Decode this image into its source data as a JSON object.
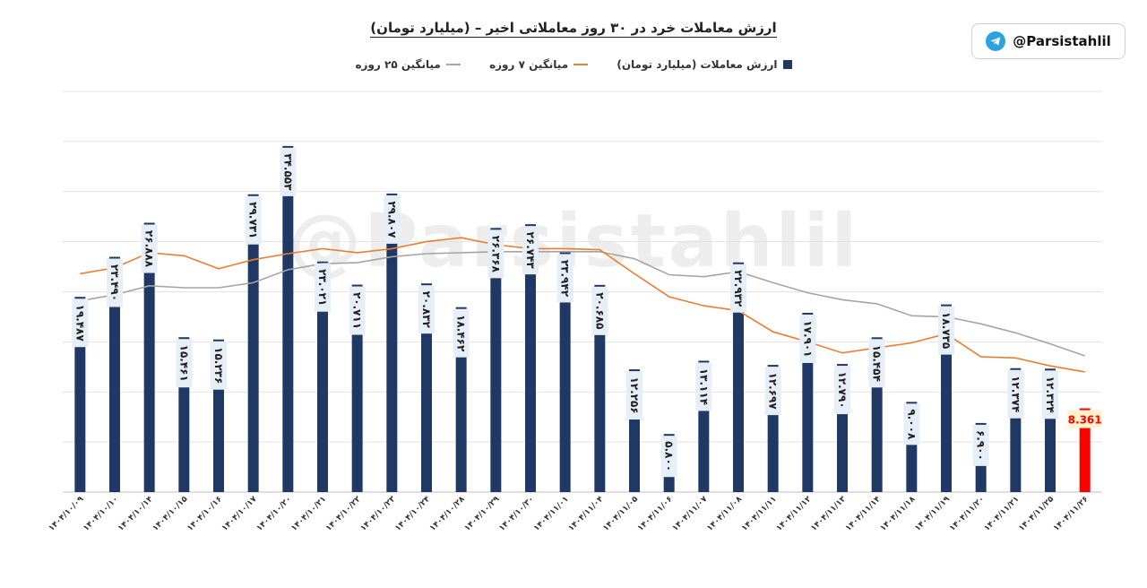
{
  "title": "ارزش معاملات خرد در ۳۰ روز معاملاتی اخیر – (میلیارد تومان)",
  "badge": {
    "handle": "@Parsistahlil",
    "icon": "telegram-icon"
  },
  "watermark": "@Parsistahlil",
  "legend": {
    "bars": "ارزش معاملات (میلیارد تومان)",
    "ma7": "میانگین ۷ روزه",
    "ma25": "میانگین ۲۵ روزه"
  },
  "colors": {
    "bar": "#203864",
    "last_bar": "#ff0000",
    "ma7": "#ed7d31",
    "ma25": "#a5a5a5",
    "label_bg": "#e6eef7",
    "last_label_bg": "#fff2cc",
    "last_label_text": "#ff0000"
  },
  "chart_data": {
    "type": "bar",
    "title": "ارزش معاملات خرد در ۳۰ روز معاملاتی اخیر – (میلیارد تومان)",
    "ylim": [
      0,
      40
    ],
    "grid": true,
    "legend_position": "top",
    "categories": [
      "۱۴۰۴/۱۰/۰۹",
      "۱۴۰۴/۱۰/۱۰",
      "۱۴۰۴/۱۰/۱۴",
      "۱۴۰۴/۱۰/۱۵",
      "۱۴۰۴/۱۰/۱۶",
      "۱۴۰۴/۱۰/۱۷",
      "۱۴۰۴/۱۰/۲۰",
      "۱۴۰۴/۱۰/۲۱",
      "۱۴۰۴/۱۰/۲۲",
      "۱۴۰۴/۱۰/۲۳",
      "۱۴۰۴/۱۰/۲۴",
      "۱۴۰۴/۱۰/۲۸",
      "۱۴۰۴/۱۰/۲۹",
      "۱۴۰۴/۱۰/۳۰",
      "۱۴۰۴/۱۱/۰۱",
      "۱۴۰۴/۱۱/۰۴",
      "۱۴۰۴/۱۱/۰۵",
      "۱۴۰۴/۱۱/۰۶",
      "۱۴۰۴/۱۱/۰۷",
      "۱۴۰۴/۱۱/۰۸",
      "۱۴۰۴/۱۱/۱۱",
      "۱۴۰۴/۱۱/۱۲",
      "۱۴۰۴/۱۱/۱۳",
      "۱۴۰۴/۱۱/۱۴",
      "۱۴۰۴/۱۱/۱۸",
      "۱۴۰۴/۱۱/۱۹",
      "۱۴۰۴/۱۱/۲۰",
      "۱۴۰۴/۱۱/۲۱",
      "۱۴۰۴/۱۱/۲۵",
      "۱۴۰۴/۱۱/۲۶"
    ],
    "series": [
      {
        "name": "ارزش معاملات (میلیارد تومان)",
        "type": "bar",
        "values": [
          19.487,
          23.49,
          26.888,
          15.461,
          15.236,
          29.731,
          34.553,
          23.021,
          20.711,
          29.807,
          20.832,
          18.462,
          26.368,
          26.743,
          23.942,
          20.685,
          12.256,
          5.8,
          13.114,
          22.932,
          12.697,
          17.901,
          12.79,
          15.454,
          9.008,
          18.735,
          6.9,
          12.374,
          12.324,
          8.361
        ],
        "labels": [
          "۱۹.۴۸۷",
          "۲۳.۴۹۰",
          "۲۶.۸۸۸",
          "۱۵.۴۶۱",
          "۱۵.۲۳۶",
          "۲۹.۷۳۱",
          "۳۴.۵۵۳",
          "۲۳.۰۲۱",
          "۲۰.۷۱۱",
          "۲۹.۸۰۷",
          "۲۰.۸۳۲",
          "۱۸.۴۶۲",
          "۲۶.۳۶۸",
          "۲۶.۷۴۳",
          "۲۳.۹۴۲",
          "۲۰.۶۸۵",
          "۱۲.۲۵۶",
          "۵.۸۰۰",
          "۱۳.۱۱۴",
          "۲۲.۹۳۲",
          "۱۲.۶۹۷",
          "۱۷.۹۰۱",
          "۱۲.۷۹۰",
          "۱۵.۴۵۴",
          "۹.۰۰۸",
          "۱۸.۷۳۵",
          "۶.۹۰۰",
          "۱۲.۳۷۴",
          "۱۲.۳۲۴",
          "8.361"
        ]
      },
      {
        "name": "میانگین ۷ روزه",
        "type": "line",
        "values": [
          21.8,
          22.4,
          23.9,
          23.6,
          22.3,
          23.2,
          23.8,
          24.3,
          23.9,
          24.3,
          25.0,
          25.4,
          24.7,
          24.3,
          24.3,
          24.2,
          21.8,
          19.5,
          18.6,
          18.1,
          16.0,
          15.0,
          13.9,
          14.4,
          14.9,
          15.8,
          13.5,
          13.4,
          12.6,
          12.0
        ]
      },
      {
        "name": "میانگین ۲۵ روزه",
        "type": "line",
        "values": [
          19.1,
          19.7,
          20.6,
          20.4,
          20.4,
          20.9,
          22.2,
          22.8,
          22.9,
          23.5,
          23.8,
          23.9,
          24.0,
          24.0,
          24.0,
          24.0,
          23.3,
          21.7,
          21.5,
          22.0,
          20.9,
          19.9,
          19.2,
          18.8,
          17.6,
          17.5,
          16.8,
          15.9,
          14.8,
          13.6
        ]
      }
    ]
  }
}
